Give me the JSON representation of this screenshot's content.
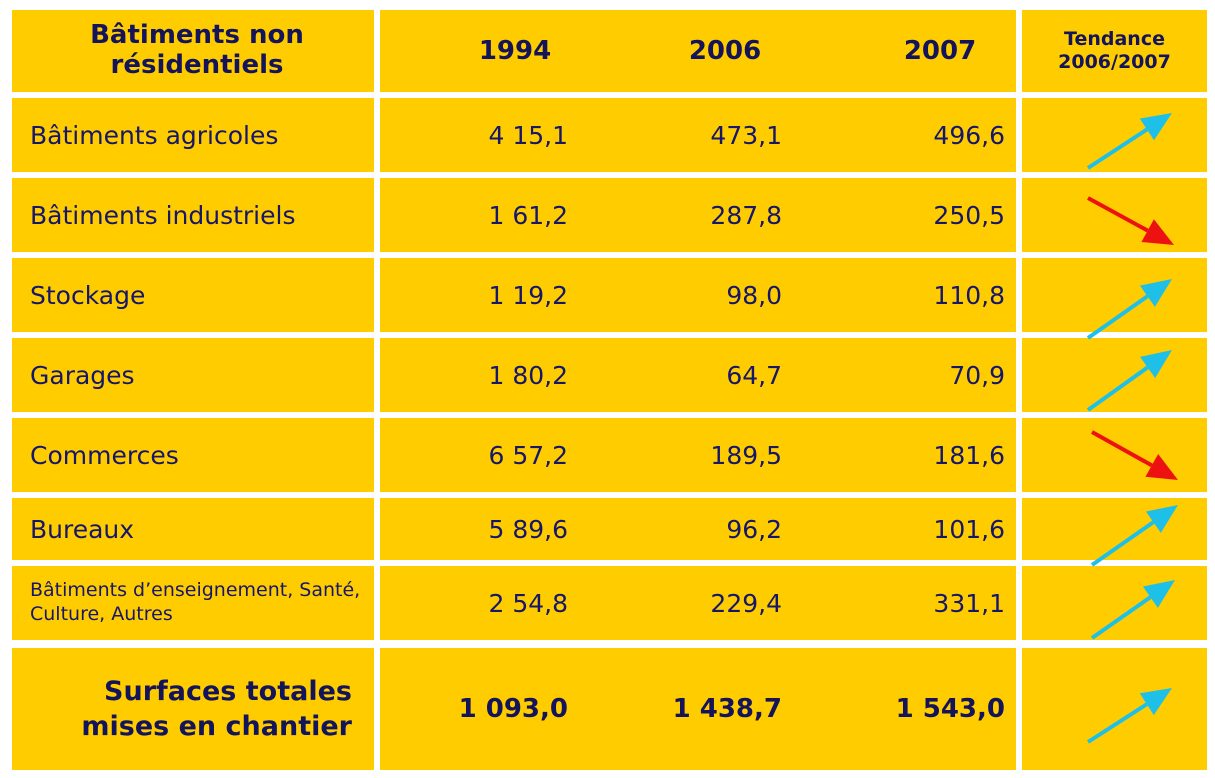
{
  "table": {
    "header": [
      "Bâtiments non résidentiels",
      "1994",
      "2006",
      "2007",
      "Tendance 2006/2007"
    ],
    "rows": [
      [
        "Bâtiments agricoles",
        "4 15,1",
        "473,1",
        "496,6"
      ],
      [
        "Bâtiments industriels",
        "1 61,2",
        "287,8",
        "250,5"
      ],
      [
        "Stockage",
        "1 19,2",
        "98,0",
        "110,8"
      ],
      [
        "Garages",
        "1 80,2",
        "64,7",
        "70,9"
      ],
      [
        "Commerces",
        "6 57,2",
        "189,5",
        "181,6"
      ],
      [
        "Bureaux",
        "5 89,6",
        "96,2",
        "101,6"
      ],
      [
        "Bâtiments d’enseignement, Santé, Culture, Autres",
        "2 54,8",
        "229,4",
        "331,1"
      ]
    ],
    "total": [
      "Surfaces totales mises en chantier",
      "1 093,0",
      "1 438,7",
      "1 543,0"
    ]
  }
}
